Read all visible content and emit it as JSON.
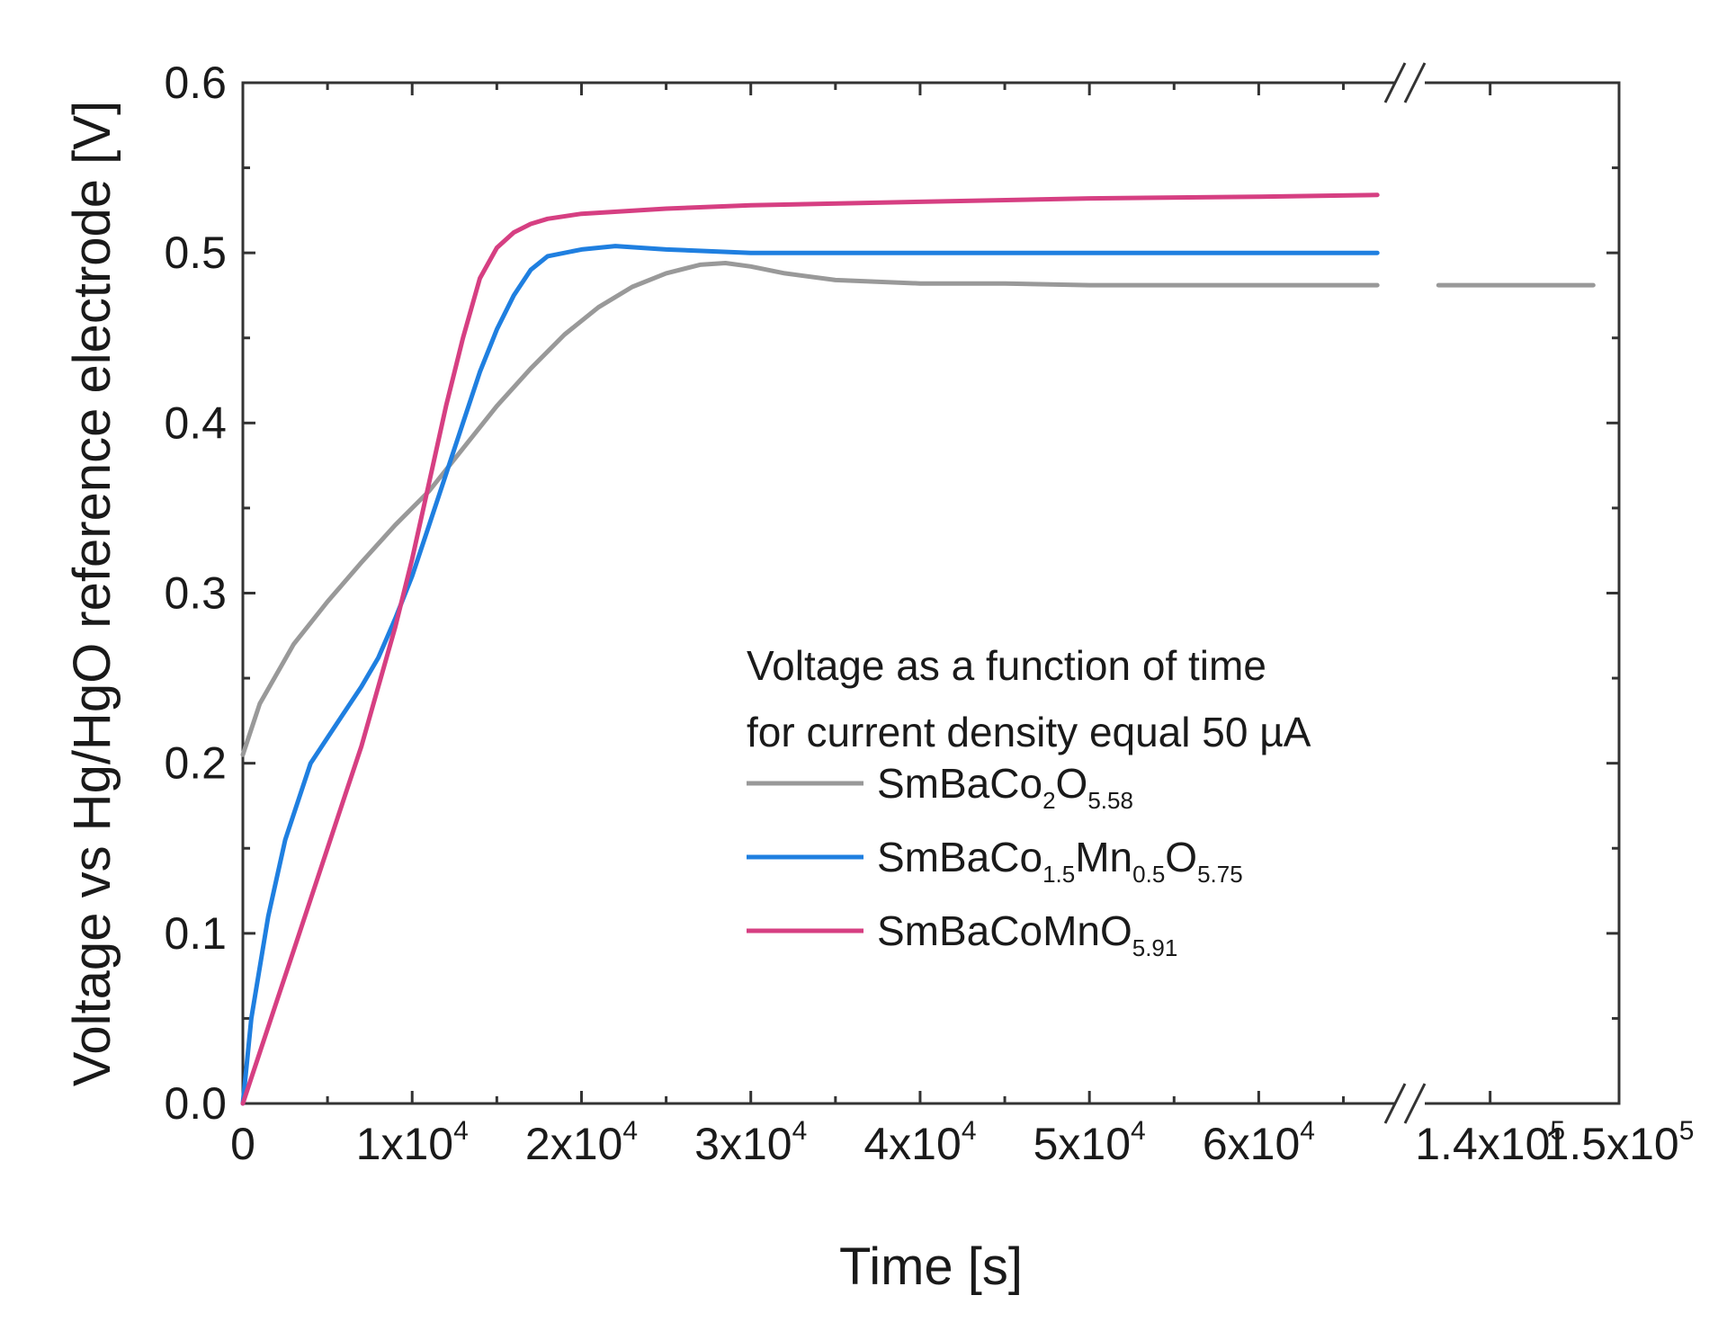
{
  "chart_data": {
    "type": "line",
    "title": "",
    "xlabel": "Time [s]",
    "ylabel": "Voltage vs Hg/HgO reference electrode [V]",
    "ylim": [
      0,
      0.6
    ],
    "xlim": [
      0,
      150000
    ],
    "x_break": {
      "from": 68000,
      "to": 135000
    },
    "y_ticks": [
      {
        "value": 0.0,
        "label": "0.0"
      },
      {
        "value": 0.1,
        "label": "0.1"
      },
      {
        "value": 0.2,
        "label": "0.2"
      },
      {
        "value": 0.3,
        "label": "0.3"
      },
      {
        "value": 0.4,
        "label": "0.4"
      },
      {
        "value": 0.5,
        "label": "0.5"
      },
      {
        "value": 0.6,
        "label": "0.6"
      }
    ],
    "x_ticks": [
      {
        "value": 0,
        "mantissa": "0",
        "exp": ""
      },
      {
        "value": 10000,
        "mantissa": "1x10",
        "exp": "4"
      },
      {
        "value": 20000,
        "mantissa": "2x10",
        "exp": "4"
      },
      {
        "value": 30000,
        "mantissa": "3x10",
        "exp": "4"
      },
      {
        "value": 40000,
        "mantissa": "4x10",
        "exp": "4"
      },
      {
        "value": 50000,
        "mantissa": "5x10",
        "exp": "4"
      },
      {
        "value": 60000,
        "mantissa": "6x10",
        "exp": "4"
      },
      {
        "value": 140000,
        "mantissa": "1.4x10",
        "exp": "5"
      },
      {
        "value": 150000,
        "mantissa": "1.5x10",
        "exp": "5"
      }
    ],
    "legend_title": [
      "Voltage as a function of time",
      "for current density equal 50 µA"
    ],
    "legend_position": "center-right",
    "series": [
      {
        "name": "SmBaCo2O5.58",
        "label_parts": [
          [
            "SmBaCo",
            ""
          ],
          [
            "2",
            "sub"
          ],
          [
            "O",
            ""
          ],
          [
            "5.58",
            "sub"
          ]
        ],
        "color": "#999999",
        "points": [
          [
            0,
            0.205
          ],
          [
            1000,
            0.235
          ],
          [
            3000,
            0.27
          ],
          [
            5000,
            0.295
          ],
          [
            7000,
            0.318
          ],
          [
            9000,
            0.34
          ],
          [
            11000,
            0.36
          ],
          [
            13000,
            0.385
          ],
          [
            15000,
            0.41
          ],
          [
            17000,
            0.432
          ],
          [
            19000,
            0.452
          ],
          [
            21000,
            0.468
          ],
          [
            23000,
            0.48
          ],
          [
            25000,
            0.488
          ],
          [
            27000,
            0.493
          ],
          [
            28500,
            0.494
          ],
          [
            30000,
            0.492
          ],
          [
            32000,
            0.488
          ],
          [
            35000,
            0.484
          ],
          [
            40000,
            0.482
          ],
          [
            45000,
            0.482
          ],
          [
            50000,
            0.481
          ],
          [
            55000,
            0.481
          ],
          [
            60000,
            0.481
          ],
          [
            67000,
            0.481
          ],
          [
            136000,
            0.481
          ],
          [
            148000,
            0.481
          ]
        ]
      },
      {
        "name": "SmBaCo1.5Mn0.5O5.75",
        "label_parts": [
          [
            "SmBaCo",
            ""
          ],
          [
            "1.5",
            "sub"
          ],
          [
            "Mn",
            ""
          ],
          [
            "0.5",
            "sub"
          ],
          [
            "O",
            ""
          ],
          [
            "5.75",
            "sub"
          ]
        ],
        "color": "#1f7fe0",
        "points": [
          [
            0,
            0.0
          ],
          [
            500,
            0.05
          ],
          [
            1500,
            0.11
          ],
          [
            2500,
            0.155
          ],
          [
            4000,
            0.2
          ],
          [
            5000,
            0.215
          ],
          [
            6000,
            0.23
          ],
          [
            7000,
            0.245
          ],
          [
            8000,
            0.262
          ],
          [
            9000,
            0.285
          ],
          [
            10000,
            0.31
          ],
          [
            11000,
            0.34
          ],
          [
            12000,
            0.37
          ],
          [
            13000,
            0.4
          ],
          [
            14000,
            0.43
          ],
          [
            15000,
            0.455
          ],
          [
            16000,
            0.475
          ],
          [
            17000,
            0.49
          ],
          [
            18000,
            0.498
          ],
          [
            20000,
            0.502
          ],
          [
            22000,
            0.504
          ],
          [
            25000,
            0.502
          ],
          [
            30000,
            0.5
          ],
          [
            40000,
            0.5
          ],
          [
            50000,
            0.5
          ],
          [
            60000,
            0.5
          ],
          [
            67000,
            0.5
          ]
        ]
      },
      {
        "name": "SmBaCoMnO5.91",
        "label_parts": [
          [
            "SmBaCoMnO",
            ""
          ],
          [
            "5.91",
            "sub"
          ]
        ],
        "color": "#d63f82",
        "points": [
          [
            0,
            0.0
          ],
          [
            1000,
            0.03
          ],
          [
            2000,
            0.06
          ],
          [
            3000,
            0.09
          ],
          [
            4000,
            0.12
          ],
          [
            5000,
            0.15
          ],
          [
            6000,
            0.18
          ],
          [
            7000,
            0.21
          ],
          [
            8000,
            0.245
          ],
          [
            9000,
            0.28
          ],
          [
            10000,
            0.32
          ],
          [
            11000,
            0.365
          ],
          [
            12000,
            0.41
          ],
          [
            13000,
            0.45
          ],
          [
            14000,
            0.485
          ],
          [
            15000,
            0.503
          ],
          [
            16000,
            0.512
          ],
          [
            17000,
            0.517
          ],
          [
            18000,
            0.52
          ],
          [
            20000,
            0.523
          ],
          [
            25000,
            0.526
          ],
          [
            30000,
            0.528
          ],
          [
            40000,
            0.53
          ],
          [
            50000,
            0.532
          ],
          [
            60000,
            0.533
          ],
          [
            67000,
            0.534
          ]
        ]
      }
    ]
  }
}
